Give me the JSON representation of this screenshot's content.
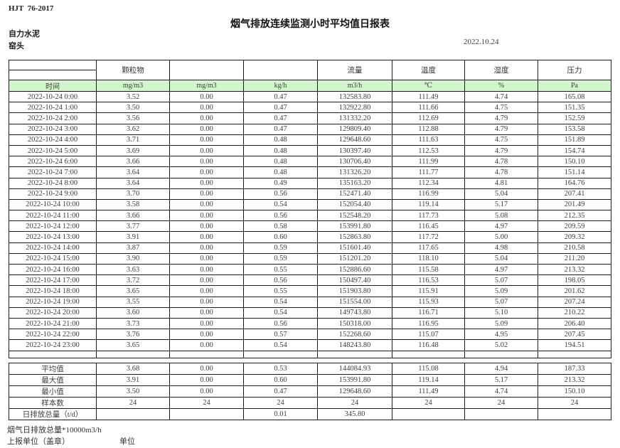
{
  "meta": {
    "standard": "HJT  76-2017",
    "title": "烟气排放连续监测小时平均值日报表",
    "company": "自力水泥",
    "station": "窑头",
    "date": "2022.10.24"
  },
  "table": {
    "group_headers": [
      "",
      "颗粒物",
      "",
      "",
      "流量",
      "温度",
      "湿度",
      "压力"
    ],
    "unit_headers": [
      "时间",
      "mg/m3",
      "mg/m3",
      "kg/h",
      "m3/h",
      "℃",
      "%",
      "Pa"
    ],
    "rows": [
      [
        "2022-10-24 0:00",
        "3.52",
        "0.00",
        "0.47",
        "132583.80",
        "111.49",
        "4.74",
        "165.08"
      ],
      [
        "2022-10-24 1:00",
        "3.50",
        "0.00",
        "0.47",
        "132922.80",
        "111.66",
        "4.75",
        "151.35"
      ],
      [
        "2022-10-24 2:00",
        "3.56",
        "0.00",
        "0.47",
        "131332.20",
        "112.69",
        "4.79",
        "152.59"
      ],
      [
        "2022-10-24 3:00",
        "3.62",
        "0.00",
        "0.47",
        "129809.40",
        "112.88",
        "4.79",
        "153.58"
      ],
      [
        "2022-10-24 4:00",
        "3.71",
        "0.00",
        "0.48",
        "129648.60",
        "111.63",
        "4.75",
        "151.89"
      ],
      [
        "2022-10-24 5:00",
        "3.69",
        "0.00",
        "0.48",
        "130397.40",
        "112.53",
        "4.79",
        "154.74"
      ],
      [
        "2022-10-24 6:00",
        "3.66",
        "0.00",
        "0.48",
        "130706.40",
        "111.99",
        "4.78",
        "150.10"
      ],
      [
        "2022-10-24 7:00",
        "3.64",
        "0.00",
        "0.48",
        "131326.20",
        "111.77",
        "4.78",
        "151.14"
      ],
      [
        "2022-10-24 8:00",
        "3.64",
        "0.00",
        "0.49",
        "135163.20",
        "112.34",
        "4.81",
        "164.76"
      ],
      [
        "2022-10-24 9:00",
        "3.70",
        "0.00",
        "0.56",
        "152471.40",
        "116.99",
        "5.04",
        "207.41"
      ],
      [
        "2022-10-24 10:00",
        "3.58",
        "0.00",
        "0.54",
        "152054.40",
        "119.14",
        "5.17",
        "201.49"
      ],
      [
        "2022-10-24 11:00",
        "3.66",
        "0.00",
        "0.56",
        "152548.20",
        "117.73",
        "5.08",
        "212.35"
      ],
      [
        "2022-10-24 12:00",
        "3.77",
        "0.00",
        "0.58",
        "153991.80",
        "116.45",
        "4.97",
        "209.59"
      ],
      [
        "2022-10-24 13:00",
        "3.91",
        "0.00",
        "0.60",
        "152863.80",
        "117.72",
        "5.00",
        "209.32"
      ],
      [
        "2022-10-24 14:00",
        "3.87",
        "0.00",
        "0.59",
        "151601.40",
        "117.65",
        "4.98",
        "210.58"
      ],
      [
        "2022-10-24 15:00",
        "3.90",
        "0.00",
        "0.59",
        "151201.20",
        "118.10",
        "5.04",
        "211.20"
      ],
      [
        "2022-10-24 16:00",
        "3.63",
        "0.00",
        "0.55",
        "152886.60",
        "115.58",
        "4.97",
        "213.32"
      ],
      [
        "2022-10-24 17:00",
        "3.72",
        "0.00",
        "0.56",
        "150497.40",
        "116.53",
        "5.07",
        "198.05"
      ],
      [
        "2022-10-24 18:00",
        "3.65",
        "0.00",
        "0.55",
        "151903.80",
        "115.91",
        "5.09",
        "201.62"
      ],
      [
        "2022-10-24 19:00",
        "3.55",
        "0.00",
        "0.54",
        "151554.00",
        "115.93",
        "5.07",
        "207.24"
      ],
      [
        "2022-10-24 20:00",
        "3.60",
        "0.00",
        "0.54",
        "149743.80",
        "116.71",
        "5.10",
        "210.22"
      ],
      [
        "2022-10-24 21:00",
        "3.73",
        "0.00",
        "0.56",
        "150318.00",
        "116.95",
        "5.09",
        "206.40"
      ],
      [
        "2022-10-24 22:00",
        "3.76",
        "0.00",
        "0.57",
        "152268.60",
        "115.07",
        "4.95",
        "207.45"
      ],
      [
        "2022-10-24 23:00",
        "3.65",
        "0.00",
        "0.54",
        "148243.80",
        "116.48",
        "5.02",
        "194.51"
      ]
    ],
    "summary_rows": [
      [
        "平均值",
        "3.68",
        "0.00",
        "0.53",
        "144084.93",
        "115.08",
        "4.94",
        "187.33"
      ],
      [
        "最大值",
        "3.91",
        "0.00",
        "0.60",
        "153991.80",
        "119.14",
        "5.17",
        "213.32"
      ],
      [
        "最小值",
        "3.50",
        "0.00",
        "0.47",
        "129648.60",
        "111.49",
        "4.74",
        "150.10"
      ],
      [
        "样本数",
        "24",
        "24",
        "24",
        "24",
        "24",
        "24",
        "24"
      ],
      [
        "日排放总量（t/d）",
        "",
        "",
        "0.01",
        "345.80",
        "",
        "",
        ""
      ]
    ]
  },
  "footer": {
    "note": "烟气日排放总量*10000m3/h",
    "report_unit_label": "上报单位（盖章）",
    "unit_label": "单位"
  },
  "colors": {
    "header_green": "#d2f5cd",
    "border": "#1c1c1c",
    "text": "#3d3d3d"
  }
}
